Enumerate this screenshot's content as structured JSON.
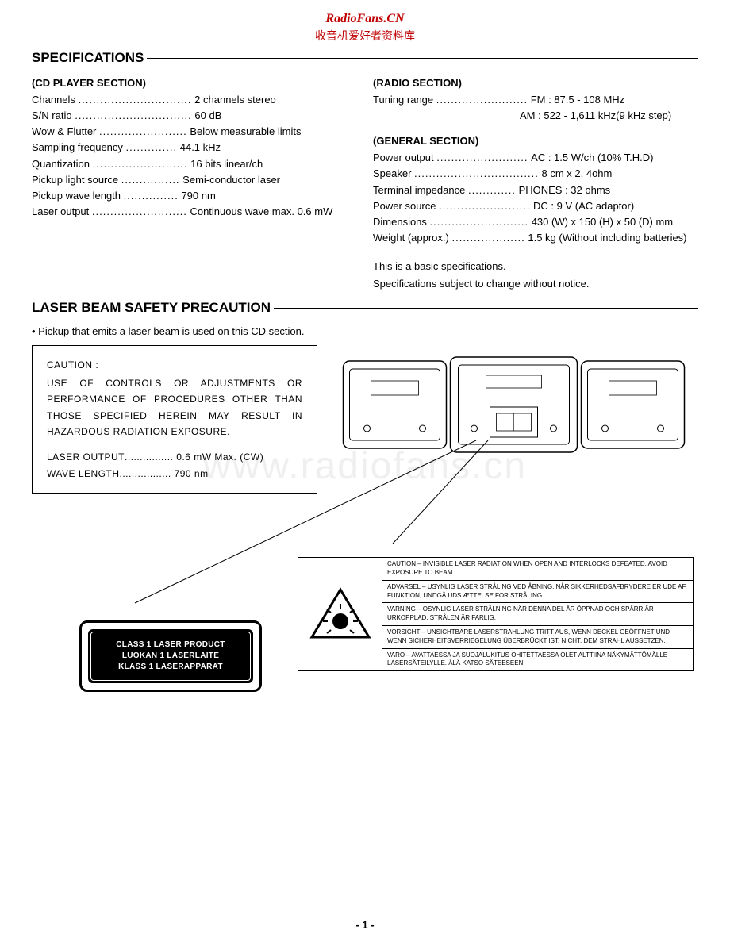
{
  "header": {
    "site_name": "RadioFans.CN",
    "site_sub": "收音机爱好者资料库"
  },
  "specifications": {
    "heading": "SPECIFICATIONS",
    "cd_section": {
      "title": "(CD PLAYER SECTION)",
      "rows": [
        {
          "label": "Channels",
          "dots": "...............................",
          "value": "2 channels stereo"
        },
        {
          "label": "S/N ratio",
          "dots": "................................",
          "value": "60 dB"
        },
        {
          "label": "Wow & Flutter",
          "dots": "........................",
          "value": "Below measurable limits"
        },
        {
          "label": "Sampling frequency",
          "dots": "..............",
          "value": "44.1 kHz"
        },
        {
          "label": "Quantization",
          "dots": "..........................",
          "value": "16 bits linear/ch"
        },
        {
          "label": "Pickup light source",
          "dots": "................",
          "value": "Semi-conductor laser"
        },
        {
          "label": "Pickup wave length",
          "dots": "...............",
          "value": "790 nm"
        },
        {
          "label": "Laser output",
          "dots": "..........................",
          "value": "Continuous wave max. 0.6 mW"
        }
      ]
    },
    "radio_section": {
      "title": "(RADIO SECTION)",
      "rows": [
        {
          "label": "Tuning range",
          "dots": ".........................",
          "value": "FM : 87.5 - 108 MHz"
        }
      ],
      "extra_line": "AM : 522  - 1,611 kHz(9 kHz step)"
    },
    "general_section": {
      "title": "(GENERAL SECTION)",
      "rows": [
        {
          "label": "Power output",
          "dots": ".........................",
          "value": "AC : 1.5 W/ch (10% T.H.D)"
        },
        {
          "label": "Speaker",
          "dots": "..................................",
          "value": "8 cm x 2, 4ohm"
        },
        {
          "label": "Terminal impedance",
          "dots": ".............",
          "value": "PHONES : 32 ohms"
        },
        {
          "label": "Power source",
          "dots": ".........................",
          "value": "DC : 9 V (AC adaptor)"
        },
        {
          "label": "Dimensions",
          "dots": "...........................",
          "value": "430 (W) x 150 (H) x 50 (D) mm"
        },
        {
          "label": "Weight (approx.)",
          "dots": "....................",
          "value": "1.5 kg (Without including batteries)"
        }
      ]
    },
    "note1": "This is a basic specifications.",
    "note2": "Specifications subject to change without notice."
  },
  "laser_safety": {
    "heading": "LASER BEAM SAFETY PRECAUTION",
    "bullet": "• Pickup that emits a laser beam is used on this CD section.",
    "caution": {
      "title": "CAUTION :",
      "body": "USE OF CONTROLS OR ADJUSTMENTS OR PERFORMANCE OF PROCEDURES OTHER THAN THOSE SPECIFIED HEREIN MAY RESULT IN HAZARDOUS RADIATION EXPOSURE.",
      "spec1_label": "LASER OUTPUT",
      "spec1_dots": "................",
      "spec1_value": "0.6 mW Max. (CW)",
      "spec2_label": "WAVE LENGTH",
      "spec2_dots": ".................",
      "spec2_value": "790 nm"
    },
    "class1": {
      "line1": "CLASS 1 LASER PRODUCT",
      "line2": "LUOKAN 1 LASERLAITE",
      "line3": "KLASS 1 LASERAPPARAT"
    },
    "warnings": [
      "CAUTION – INVISIBLE LASER RADIATION WHEN OPEN AND INTERLOCKS DEFEATED. AVOID EXPOSURE TO BEAM.",
      "ADVARSEL – USYNLIG LASER STRÅLING VED ÅBNING. NÅR SIKKERHEDSAFBRYDERE ER UDE AF FUNKTION, UNDGÅ UDS ÆTTELSE FOR STRÅLING.",
      "VARNING – OSYNLIG LASER STRÅLNING NÄR DENNA DEL ÄR ÖPPNAD OCH SPÄRR ÄR URKOPPLAD. STRÅLEN ÄR FARLIG.",
      "VORSICHT – UNSICHTBARE LASERSTRAHLUNG TRITT AUS, WENN DECKEL GEÖFFNET UND WENN SICHERHEITSVERRIEGELUNG ÜBERBRÜCKT IST. NICHT, DEM STRAHL AUSSETZEN.",
      "VARO – AVATTAESSA JA SUOJALUKITUS OHITETTAESSA OLET ALTTIINA NÄKYMÄTTÖMÄLLE LASERSÄTEILYLLE. ÄLÄ KATSO SÄTEESEEN."
    ]
  },
  "watermark": "www.radiofans.cn",
  "page_number": "- 1 -"
}
